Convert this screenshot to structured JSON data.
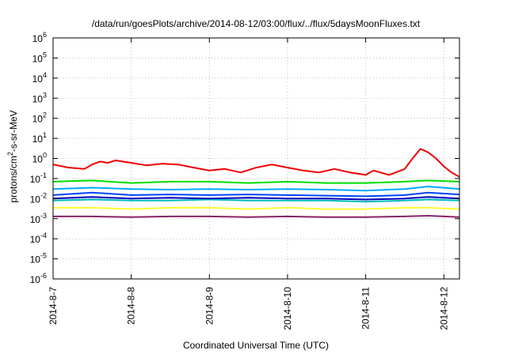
{
  "chart_data": {
    "type": "line",
    "title": "/data/run/goesPlots/archive/2014-08-12/03:00/flux/../flux/5daysMoonFluxes.txt",
    "xlabel": "Coordinated Universal Time (UTC)",
    "ylabel_parts": {
      "base": "protons/cm",
      "sup": "2",
      "rest": "-s-sr-MeV"
    },
    "y_scale": "log",
    "ylim": [
      1e-06,
      1000000.0
    ],
    "y_ticks": [
      {
        "value": 1e-06,
        "base": "10",
        "exp": "-6"
      },
      {
        "value": 1e-05,
        "base": "10",
        "exp": "-5"
      },
      {
        "value": 0.0001,
        "base": "10",
        "exp": "-4"
      },
      {
        "value": 0.001,
        "base": "10",
        "exp": "-3"
      },
      {
        "value": 0.01,
        "base": "10",
        "exp": "-2"
      },
      {
        "value": 0.1,
        "base": "10",
        "exp": "-1"
      },
      {
        "value": 1.0,
        "base": "10",
        "exp": "0"
      },
      {
        "value": 10.0,
        "base": "10",
        "exp": "1"
      },
      {
        "value": 100.0,
        "base": "10",
        "exp": "2"
      },
      {
        "value": 1000.0,
        "base": "10",
        "exp": "3"
      },
      {
        "value": 10000.0,
        "base": "10",
        "exp": "4"
      },
      {
        "value": 100000.0,
        "base": "10",
        "exp": "5"
      },
      {
        "value": 1000000.0,
        "base": "10",
        "exp": "6"
      }
    ],
    "xlim": [
      0,
      5.2
    ],
    "x_ticks": [
      {
        "value": 0,
        "label": "2014-8-7"
      },
      {
        "value": 1,
        "label": "2014-8-8"
      },
      {
        "value": 2,
        "label": "2014-8-9"
      },
      {
        "value": 3,
        "label": "2014-8-10"
      },
      {
        "value": 4,
        "label": "2014-8-11"
      },
      {
        "value": 5,
        "label": "2014-8-12"
      }
    ],
    "grid": "dotted",
    "legend": "none",
    "series": [
      {
        "color": "#ee0000",
        "x": [
          0,
          0.2,
          0.4,
          0.5,
          0.6,
          0.7,
          0.8,
          1.0,
          1.2,
          1.4,
          1.6,
          1.8,
          2.0,
          2.2,
          2.4,
          2.6,
          2.8,
          3.0,
          3.2,
          3.4,
          3.6,
          3.8,
          4.0,
          4.1,
          4.3,
          4.5,
          4.6,
          4.7,
          4.8,
          4.9,
          5.0,
          5.1,
          5.2
        ],
        "y": [
          0.5,
          0.35,
          0.3,
          0.5,
          0.7,
          0.6,
          0.8,
          0.6,
          0.45,
          0.55,
          0.5,
          0.35,
          0.25,
          0.3,
          0.2,
          0.35,
          0.5,
          0.35,
          0.25,
          0.2,
          0.3,
          0.2,
          0.15,
          0.25,
          0.15,
          0.3,
          1.0,
          3.0,
          2.0,
          1.0,
          0.4,
          0.2,
          0.12
        ]
      },
      {
        "color": "#00dd00",
        "x": [
          0,
          0.5,
          1.0,
          1.5,
          2.0,
          2.5,
          3.0,
          3.5,
          4.0,
          4.5,
          4.8,
          5.2
        ],
        "y": [
          0.07,
          0.08,
          0.06,
          0.07,
          0.07,
          0.06,
          0.07,
          0.06,
          0.06,
          0.07,
          0.08,
          0.07
        ]
      },
      {
        "color": "#00aaff",
        "x": [
          0,
          0.5,
          1.0,
          1.5,
          2.0,
          2.5,
          3.0,
          3.5,
          4.0,
          4.5,
          4.8,
          5.2
        ],
        "y": [
          0.03,
          0.035,
          0.03,
          0.028,
          0.03,
          0.028,
          0.03,
          0.028,
          0.025,
          0.03,
          0.04,
          0.03
        ]
      },
      {
        "color": "#0044ff",
        "x": [
          0,
          0.5,
          1.0,
          1.5,
          2.0,
          2.5,
          3.0,
          3.5,
          4.0,
          4.5,
          4.8,
          5.2
        ],
        "y": [
          0.015,
          0.02,
          0.015,
          0.016,
          0.015,
          0.016,
          0.015,
          0.014,
          0.013,
          0.015,
          0.02,
          0.016
        ]
      },
      {
        "color": "#00bbbb",
        "x": [
          0,
          0.5,
          1.0,
          1.5,
          2.0,
          2.5,
          3.0,
          3.5,
          4.0,
          4.5,
          4.8,
          5.2
        ],
        "y": [
          0.008,
          0.009,
          0.008,
          0.008,
          0.009,
          0.008,
          0.008,
          0.008,
          0.007,
          0.008,
          0.009,
          0.008
        ]
      },
      {
        "color": "#0000bb",
        "x": [
          0,
          0.5,
          1.0,
          1.5,
          2.0,
          2.5,
          3.0,
          3.5,
          4.0,
          4.5,
          4.8,
          5.2
        ],
        "y": [
          0.01,
          0.012,
          0.01,
          0.011,
          0.01,
          0.011,
          0.01,
          0.01,
          0.009,
          0.01,
          0.012,
          0.01
        ]
      },
      {
        "color": "#ffff33",
        "x": [
          0,
          0.5,
          1.0,
          1.5,
          2.0,
          2.5,
          3.0,
          3.5,
          4.0,
          4.5,
          4.8,
          5.2
        ],
        "y": [
          0.0035,
          0.0035,
          0.003,
          0.0035,
          0.0035,
          0.003,
          0.0035,
          0.003,
          0.003,
          0.0035,
          0.0035,
          0.003
        ]
      },
      {
        "color": "#882266",
        "x": [
          0,
          0.5,
          1.0,
          1.5,
          2.0,
          2.5,
          3.0,
          3.5,
          4.0,
          4.5,
          4.8,
          5.2
        ],
        "y": [
          0.0013,
          0.0013,
          0.0012,
          0.0013,
          0.0013,
          0.0012,
          0.0013,
          0.0012,
          0.0012,
          0.0013,
          0.0014,
          0.0012
        ]
      }
    ]
  }
}
